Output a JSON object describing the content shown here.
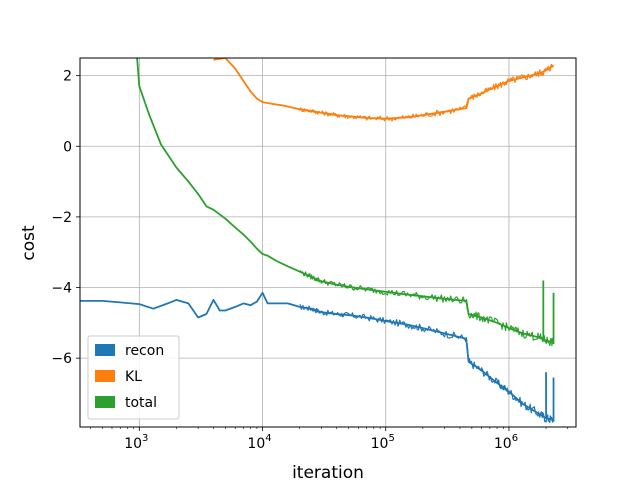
{
  "chart_data": {
    "type": "line",
    "xlabel": "iteration",
    "ylabel": "cost",
    "xscale": "log",
    "xlim": [
      330,
      3500000
    ],
    "ylim": [
      -7.95,
      2.5
    ],
    "grid": true,
    "legend_position": "lower-left",
    "x_ticks": [
      {
        "value": 1000,
        "base": "10",
        "exp": "3"
      },
      {
        "value": 10000,
        "base": "10",
        "exp": "4"
      },
      {
        "value": 100000,
        "base": "10",
        "exp": "5"
      },
      {
        "value": 1000000,
        "base": "10",
        "exp": "6"
      }
    ],
    "y_ticks": [
      {
        "value": 2,
        "label": "2"
      },
      {
        "value": 0,
        "label": "0"
      },
      {
        "value": -2,
        "label": "−2"
      },
      {
        "value": -4,
        "label": "−4"
      },
      {
        "value": -6,
        "label": "−6"
      }
    ],
    "series": [
      {
        "name": "recon",
        "color": "#1f77b4",
        "points": [
          [
            330,
            -4.38
          ],
          [
            500,
            -4.38
          ],
          [
            700,
            -4.42
          ],
          [
            1000,
            -4.47
          ],
          [
            1300,
            -4.6
          ],
          [
            1700,
            -4.45
          ],
          [
            2000,
            -4.35
          ],
          [
            2500,
            -4.45
          ],
          [
            3000,
            -4.85
          ],
          [
            3500,
            -4.75
          ],
          [
            4000,
            -4.35
          ],
          [
            4500,
            -4.65
          ],
          [
            5000,
            -4.65
          ],
          [
            6000,
            -4.55
          ],
          [
            7000,
            -4.45
          ],
          [
            8000,
            -4.5
          ],
          [
            9000,
            -4.4
          ],
          [
            10000,
            -4.15
          ],
          [
            11000,
            -4.45
          ],
          [
            13000,
            -4.45
          ],
          [
            16000,
            -4.45
          ],
          [
            20000,
            -4.55
          ],
          [
            25000,
            -4.6
          ],
          [
            30000,
            -4.7
          ],
          [
            40000,
            -4.75
          ],
          [
            50000,
            -4.78
          ],
          [
            70000,
            -4.85
          ],
          [
            100000,
            -4.95
          ],
          [
            150000,
            -5.05
          ],
          [
            200000,
            -5.15
          ],
          [
            300000,
            -5.3
          ],
          [
            450000,
            -5.45
          ],
          [
            470000,
            -6.1
          ],
          [
            600000,
            -6.35
          ],
          [
            800000,
            -6.7
          ],
          [
            1000000,
            -6.95
          ],
          [
            1300000,
            -7.3
          ],
          [
            1700000,
            -7.55
          ],
          [
            2000000,
            -7.7
          ],
          [
            2300000,
            -7.75
          ]
        ],
        "band": 0.12
      },
      {
        "name": "KL",
        "color": "#ff7f0e",
        "points": [
          [
            4000,
            2.45
          ],
          [
            5000,
            2.5
          ],
          [
            6000,
            2.2
          ],
          [
            7000,
            1.85
          ],
          [
            8000,
            1.55
          ],
          [
            9000,
            1.35
          ],
          [
            10000,
            1.25
          ],
          [
            12000,
            1.2
          ],
          [
            15000,
            1.15
          ],
          [
            20000,
            1.05
          ],
          [
            25000,
            1.0
          ],
          [
            30000,
            0.95
          ],
          [
            40000,
            0.88
          ],
          [
            50000,
            0.85
          ],
          [
            70000,
            0.8
          ],
          [
            100000,
            0.78
          ],
          [
            150000,
            0.82
          ],
          [
            200000,
            0.88
          ],
          [
            300000,
            0.98
          ],
          [
            450000,
            1.08
          ],
          [
            470000,
            1.35
          ],
          [
            600000,
            1.5
          ],
          [
            800000,
            1.7
          ],
          [
            1000000,
            1.85
          ],
          [
            1300000,
            1.95
          ],
          [
            1700000,
            2.05
          ],
          [
            2000000,
            2.15
          ],
          [
            2300000,
            2.3
          ]
        ],
        "band": 0.1
      },
      {
        "name": "total",
        "color": "#2ca02c",
        "points": [
          [
            960,
            2.5
          ],
          [
            1000,
            1.7
          ],
          [
            1200,
            0.9
          ],
          [
            1500,
            0.05
          ],
          [
            2000,
            -0.6
          ],
          [
            2500,
            -1.0
          ],
          [
            3000,
            -1.35
          ],
          [
            3500,
            -1.7
          ],
          [
            4000,
            -1.8
          ],
          [
            5000,
            -2.05
          ],
          [
            6000,
            -2.3
          ],
          [
            7000,
            -2.5
          ],
          [
            8000,
            -2.7
          ],
          [
            9000,
            -2.9
          ],
          [
            10000,
            -3.05
          ],
          [
            11000,
            -3.1
          ],
          [
            13000,
            -3.25
          ],
          [
            16000,
            -3.4
          ],
          [
            20000,
            -3.55
          ],
          [
            25000,
            -3.7
          ],
          [
            30000,
            -3.82
          ],
          [
            40000,
            -3.92
          ],
          [
            50000,
            -3.98
          ],
          [
            70000,
            -4.05
          ],
          [
            100000,
            -4.12
          ],
          [
            150000,
            -4.2
          ],
          [
            200000,
            -4.25
          ],
          [
            300000,
            -4.32
          ],
          [
            450000,
            -4.38
          ],
          [
            470000,
            -4.75
          ],
          [
            600000,
            -4.85
          ],
          [
            800000,
            -5.0
          ],
          [
            1000000,
            -5.15
          ],
          [
            1300000,
            -5.3
          ],
          [
            1700000,
            -5.4
          ],
          [
            2000000,
            -5.5
          ],
          [
            2300000,
            -5.55
          ]
        ],
        "band": 0.12
      }
    ],
    "spikes": [
      {
        "series": "total",
        "x": 1900000,
        "y_low": -5.5,
        "y_high": -3.8
      },
      {
        "series": "total",
        "x": 2300000,
        "y_low": -5.6,
        "y_high": -4.15
      },
      {
        "series": "recon",
        "x": 2000000,
        "y_low": -7.7,
        "y_high": -6.4
      },
      {
        "series": "recon",
        "x": 2300000,
        "y_low": -7.8,
        "y_high": -6.55
      }
    ],
    "legend": [
      {
        "name": "recon",
        "color": "#1f77b4"
      },
      {
        "name": "KL",
        "color": "#ff7f0e"
      },
      {
        "name": "total",
        "color": "#2ca02c"
      }
    ]
  }
}
